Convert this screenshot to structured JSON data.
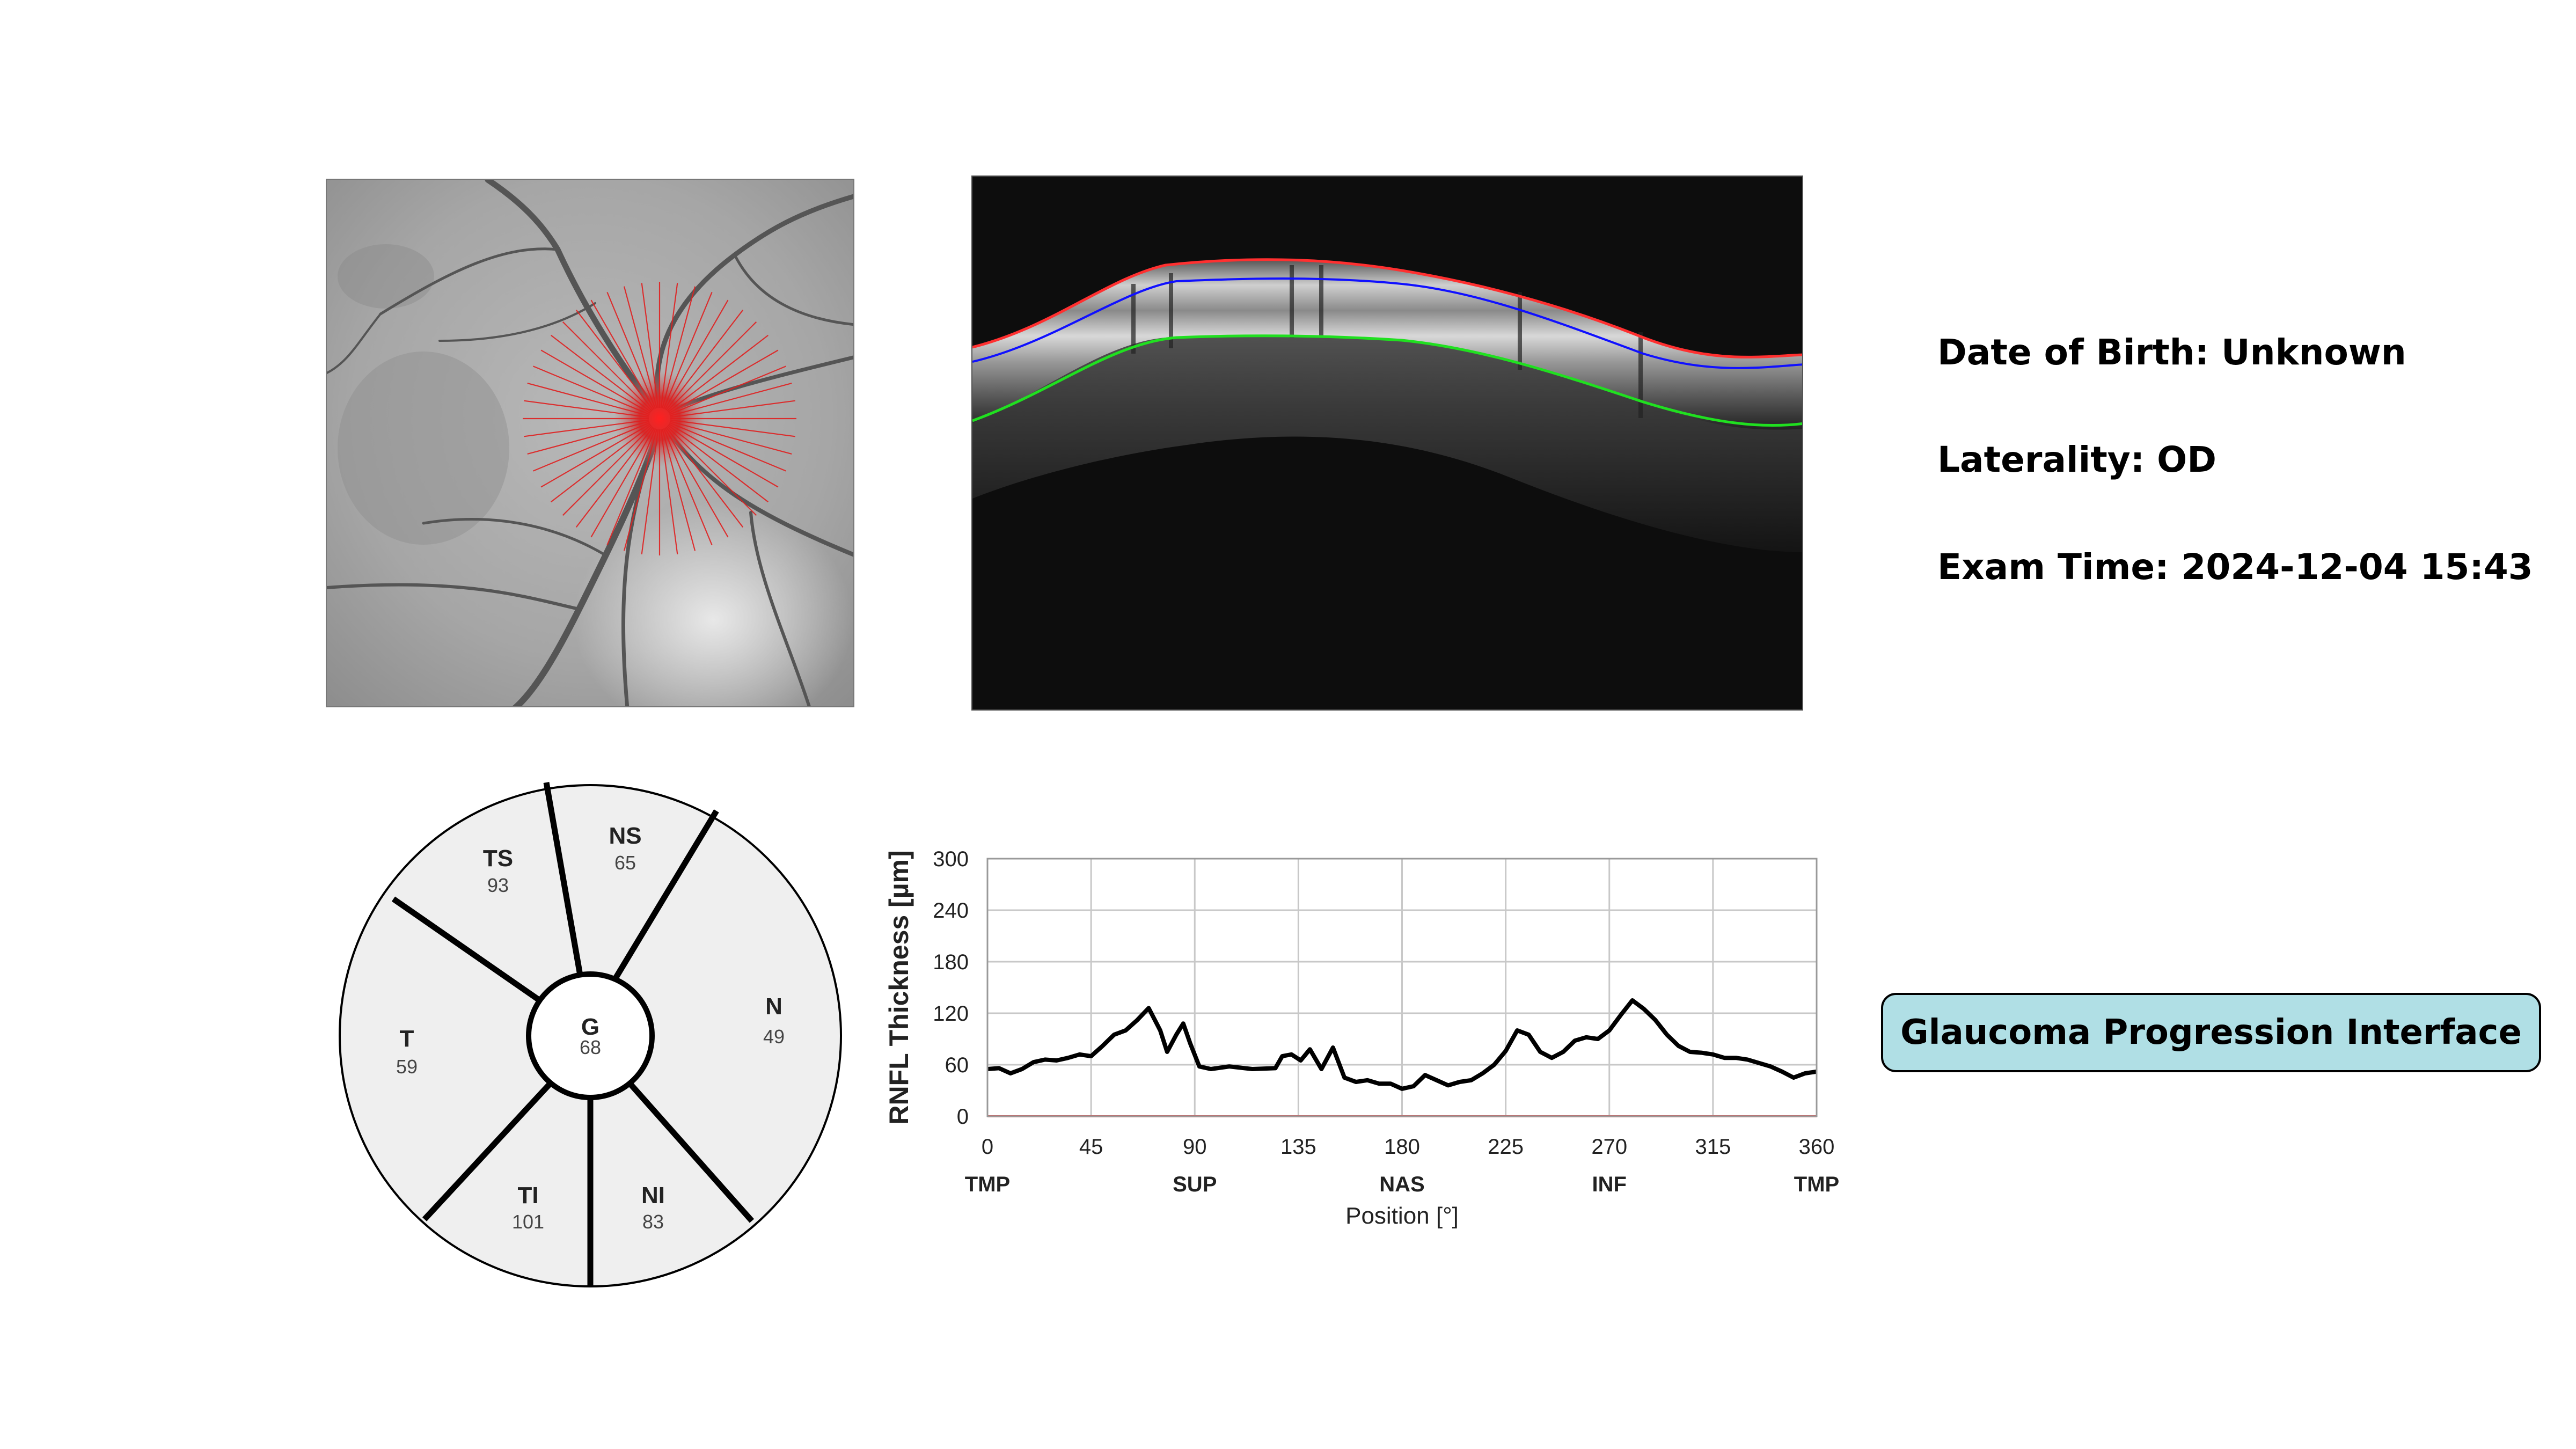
{
  "patient_info": {
    "date_of_birth": "Date of Birth: Unknown",
    "laterality": "Laterality: OD",
    "exam_time": "Exam Time: 2024-12-04 15:43"
  },
  "title_badge": "Glaucoma Progression Interface",
  "colors": {
    "ilm_line": "#ff3030",
    "rnfl_line": "#1010ff",
    "rpe_line": "#20e020",
    "badge_bg": "#b0dfe5",
    "sector_fill": "#efefef"
  },
  "sector_map": {
    "sectors": [
      {
        "code": "TS",
        "value": "93"
      },
      {
        "code": "NS",
        "value": "65"
      },
      {
        "code": "T",
        "value": "59"
      },
      {
        "code": "N",
        "value": "49"
      },
      {
        "code": "G",
        "value": "68"
      },
      {
        "code": "TI",
        "value": "101"
      },
      {
        "code": "NI",
        "value": "83"
      }
    ]
  },
  "chart_data": {
    "type": "line",
    "ylabel": "RNFL Thickness [µm]",
    "xlabel": "Position [°]",
    "xlim": [
      0,
      360
    ],
    "ylim": [
      0,
      300
    ],
    "x_ticks": [
      "0",
      "45",
      "90",
      "135",
      "180",
      "225",
      "270",
      "315",
      "360"
    ],
    "y_ticks": [
      "0",
      "60",
      "120",
      "180",
      "240",
      "300"
    ],
    "region_labels": [
      "TMP",
      "SUP",
      "NAS",
      "INF",
      "TMP"
    ],
    "grid": true,
    "series": [
      {
        "values": [
          [
            0,
            55
          ],
          [
            5,
            56
          ],
          [
            10,
            50
          ],
          [
            15,
            55
          ],
          [
            20,
            63
          ],
          [
            25,
            66
          ],
          [
            30,
            65
          ],
          [
            35,
            68
          ],
          [
            40,
            72
          ],
          [
            45,
            70
          ],
          [
            50,
            82
          ],
          [
            55,
            95
          ],
          [
            60,
            100
          ],
          [
            65,
            112
          ],
          [
            70,
            126
          ],
          [
            75,
            100
          ],
          [
            78,
            75
          ],
          [
            82,
            95
          ],
          [
            85,
            108
          ],
          [
            88,
            85
          ],
          [
            92,
            58
          ],
          [
            97,
            55
          ],
          [
            105,
            58
          ],
          [
            115,
            55
          ],
          [
            125,
            56
          ],
          [
            128,
            70
          ],
          [
            132,
            72
          ],
          [
            136,
            65
          ],
          [
            140,
            78
          ],
          [
            145,
            55
          ],
          [
            150,
            80
          ],
          [
            155,
            45
          ],
          [
            160,
            40
          ],
          [
            165,
            42
          ],
          [
            170,
            38
          ],
          [
            175,
            38
          ],
          [
            180,
            32
          ],
          [
            185,
            35
          ],
          [
            190,
            48
          ],
          [
            195,
            42
          ],
          [
            200,
            36
          ],
          [
            205,
            40
          ],
          [
            210,
            42
          ],
          [
            215,
            50
          ],
          [
            220,
            60
          ],
          [
            225,
            76
          ],
          [
            230,
            100
          ],
          [
            235,
            95
          ],
          [
            240,
            75
          ],
          [
            245,
            68
          ],
          [
            250,
            75
          ],
          [
            255,
            88
          ],
          [
            260,
            92
          ],
          [
            265,
            90
          ],
          [
            270,
            100
          ],
          [
            275,
            118
          ],
          [
            280,
            135
          ],
          [
            285,
            125
          ],
          [
            290,
            112
          ],
          [
            295,
            95
          ],
          [
            300,
            82
          ],
          [
            305,
            75
          ],
          [
            310,
            74
          ],
          [
            315,
            72
          ],
          [
            320,
            68
          ],
          [
            325,
            68
          ],
          [
            330,
            66
          ],
          [
            335,
            62
          ],
          [
            340,
            58
          ],
          [
            345,
            52
          ],
          [
            350,
            45
          ],
          [
            355,
            50
          ],
          [
            360,
            52
          ]
        ],
        "color": "#000000"
      },
      {
        "values": [
          [
            0,
            0
          ],
          [
            360,
            0
          ]
        ],
        "color": "#e05050"
      }
    ]
  }
}
